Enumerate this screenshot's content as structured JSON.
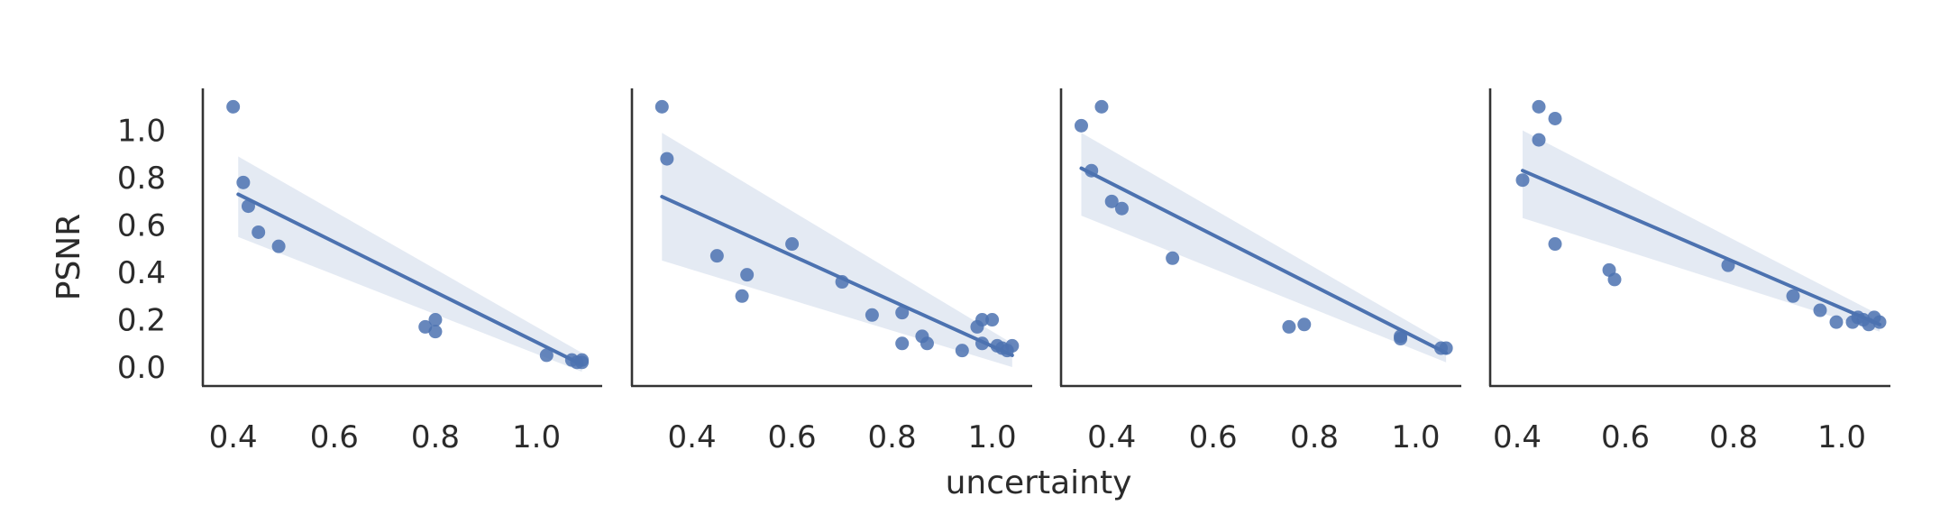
{
  "chart_data": {
    "type": "scatter",
    "xlabel": "uncertainty",
    "ylabel": "PSNR",
    "ylim": [
      -0.08,
      1.17
    ],
    "yticks": [
      0.0,
      0.2,
      0.4,
      0.6,
      0.8,
      1.0
    ],
    "y_tick_labels": [
      "0.0",
      "0.2",
      "0.4",
      "0.6",
      "0.8",
      "1.0"
    ],
    "color": "#4c72b0",
    "axis_color": "#333333",
    "panels": [
      {
        "name": "panel-1",
        "xlim": [
          0.34,
          1.13
        ],
        "xticks": [
          0.4,
          0.6,
          0.8,
          1.0
        ],
        "x_tick_labels": [
          "0.4",
          "0.6",
          "0.8",
          "1.0"
        ],
        "points": [
          {
            "x": 0.4,
            "y": 1.1
          },
          {
            "x": 0.42,
            "y": 0.78
          },
          {
            "x": 0.43,
            "y": 0.68
          },
          {
            "x": 0.45,
            "y": 0.57
          },
          {
            "x": 0.49,
            "y": 0.51
          },
          {
            "x": 0.78,
            "y": 0.17
          },
          {
            "x": 0.8,
            "y": 0.2
          },
          {
            "x": 0.8,
            "y": 0.15
          },
          {
            "x": 1.02,
            "y": 0.05
          },
          {
            "x": 1.07,
            "y": 0.03
          },
          {
            "x": 1.08,
            "y": 0.02
          },
          {
            "x": 1.09,
            "y": 0.02
          },
          {
            "x": 1.09,
            "y": 0.03
          }
        ],
        "regression": {
          "x": [
            0.41,
            1.09
          ],
          "y": [
            0.73,
            0.01
          ]
        },
        "ci_band": {
          "x": [
            0.41,
            1.09
          ],
          "upper": [
            0.89,
            0.06
          ],
          "lower": [
            0.55,
            -0.02
          ]
        }
      },
      {
        "name": "panel-2",
        "xlim": [
          0.28,
          1.08
        ],
        "xticks": [
          0.4,
          0.6,
          0.8,
          1.0
        ],
        "x_tick_labels": [
          "0.4",
          "0.6",
          "0.8",
          "1.0"
        ],
        "points": [
          {
            "x": 0.34,
            "y": 1.1
          },
          {
            "x": 0.35,
            "y": 0.88
          },
          {
            "x": 0.45,
            "y": 0.47
          },
          {
            "x": 0.5,
            "y": 0.3
          },
          {
            "x": 0.51,
            "y": 0.39
          },
          {
            "x": 0.6,
            "y": 0.52
          },
          {
            "x": 0.7,
            "y": 0.36
          },
          {
            "x": 0.76,
            "y": 0.22
          },
          {
            "x": 0.82,
            "y": 0.23
          },
          {
            "x": 0.82,
            "y": 0.1
          },
          {
            "x": 0.86,
            "y": 0.13
          },
          {
            "x": 0.87,
            "y": 0.1
          },
          {
            "x": 0.94,
            "y": 0.07
          },
          {
            "x": 0.97,
            "y": 0.17
          },
          {
            "x": 0.98,
            "y": 0.2
          },
          {
            "x": 0.98,
            "y": 0.1
          },
          {
            "x": 1.0,
            "y": 0.2
          },
          {
            "x": 1.01,
            "y": 0.09
          },
          {
            "x": 1.02,
            "y": 0.08
          },
          {
            "x": 1.03,
            "y": 0.07
          },
          {
            "x": 1.04,
            "y": 0.09
          }
        ],
        "regression": {
          "x": [
            0.34,
            1.04
          ],
          "y": [
            0.72,
            0.05
          ]
        },
        "ci_band": {
          "x": [
            0.34,
            1.04
          ],
          "upper": [
            0.99,
            0.1
          ],
          "lower": [
            0.45,
            0.0
          ]
        }
      },
      {
        "name": "panel-3",
        "xlim": [
          0.3,
          1.09
        ],
        "xticks": [
          0.4,
          0.6,
          0.8,
          1.0
        ],
        "x_tick_labels": [
          "0.4",
          "0.6",
          "0.8",
          "1.0"
        ],
        "points": [
          {
            "x": 0.34,
            "y": 1.02
          },
          {
            "x": 0.36,
            "y": 0.83
          },
          {
            "x": 0.38,
            "y": 1.1
          },
          {
            "x": 0.4,
            "y": 0.7
          },
          {
            "x": 0.42,
            "y": 0.67
          },
          {
            "x": 0.52,
            "y": 0.46
          },
          {
            "x": 0.75,
            "y": 0.17
          },
          {
            "x": 0.78,
            "y": 0.18
          },
          {
            "x": 0.97,
            "y": 0.13
          },
          {
            "x": 0.97,
            "y": 0.12
          },
          {
            "x": 1.05,
            "y": 0.08
          },
          {
            "x": 1.06,
            "y": 0.08
          }
        ],
        "regression": {
          "x": [
            0.34,
            1.06
          ],
          "y": [
            0.84,
            0.06
          ]
        },
        "ci_band": {
          "x": [
            0.34,
            1.06
          ],
          "upper": [
            0.99,
            0.1
          ],
          "lower": [
            0.64,
            0.02
          ]
        }
      },
      {
        "name": "panel-4",
        "xlim": [
          0.35,
          1.09
        ],
        "xticks": [
          0.4,
          0.6,
          0.8,
          1.0
        ],
        "x_tick_labels": [
          "0.4",
          "0.6",
          "0.8",
          "1.0"
        ],
        "points": [
          {
            "x": 0.41,
            "y": 0.79
          },
          {
            "x": 0.44,
            "y": 1.1
          },
          {
            "x": 0.44,
            "y": 0.96
          },
          {
            "x": 0.47,
            "y": 1.05
          },
          {
            "x": 0.47,
            "y": 0.52
          },
          {
            "x": 0.57,
            "y": 0.41
          },
          {
            "x": 0.58,
            "y": 0.37
          },
          {
            "x": 0.79,
            "y": 0.43
          },
          {
            "x": 0.91,
            "y": 0.3
          },
          {
            "x": 0.96,
            "y": 0.24
          },
          {
            "x": 0.99,
            "y": 0.19
          },
          {
            "x": 1.02,
            "y": 0.19
          },
          {
            "x": 1.03,
            "y": 0.21
          },
          {
            "x": 1.04,
            "y": 0.2
          },
          {
            "x": 1.05,
            "y": 0.18
          },
          {
            "x": 1.06,
            "y": 0.21
          },
          {
            "x": 1.07,
            "y": 0.19
          }
        ],
        "regression": {
          "x": [
            0.41,
            1.07
          ],
          "y": [
            0.83,
            0.18
          ]
        },
        "ci_band": {
          "x": [
            0.41,
            1.07
          ],
          "upper": [
            1.0,
            0.22
          ],
          "lower": [
            0.63,
            0.15
          ]
        }
      }
    ]
  }
}
